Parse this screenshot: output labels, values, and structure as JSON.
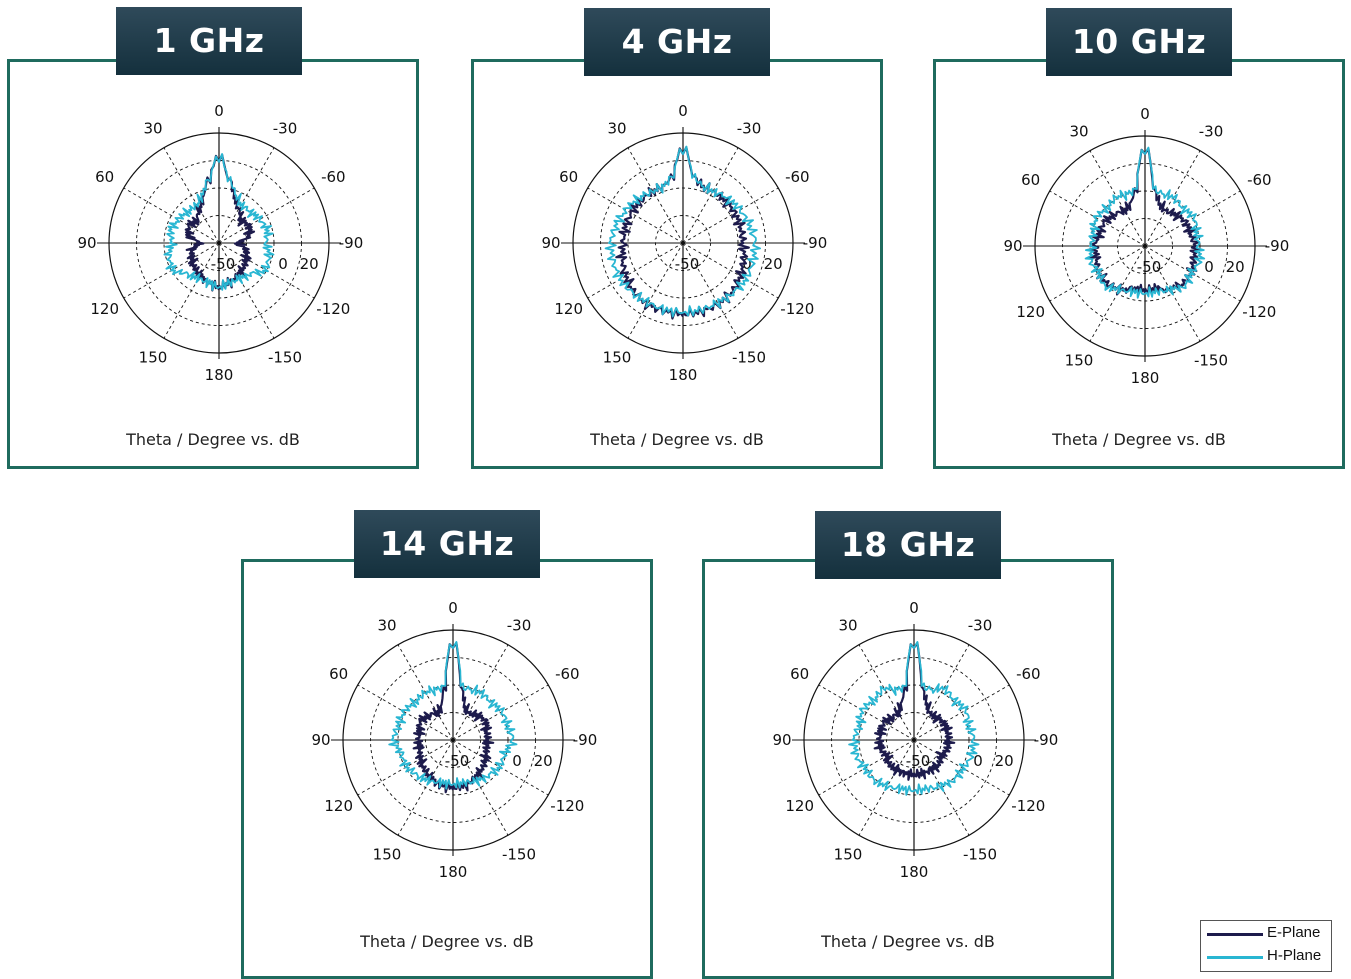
{
  "colors": {
    "e_plane": "#1d1b4c",
    "h_plane": "#29b6d2",
    "border": "#1f6b5e"
  },
  "legend": {
    "items": [
      {
        "label": "E-Plane",
        "color": "#1d1b4c"
      },
      {
        "label": "H-Plane",
        "color": "#29b6d2"
      }
    ]
  },
  "chart_data": [
    {
      "type": "polar",
      "title": "1 GHz",
      "xlabel": "Theta / Degree vs. dB",
      "r_range": [
        -50,
        20
      ],
      "r_tick_labels": [
        "-50",
        "0",
        "20"
      ],
      "angle_tick_labels": [
        "0",
        "-30",
        "-60",
        "-90",
        "-120",
        "-150",
        "180",
        "150",
        "120",
        "90",
        "60",
        "30"
      ],
      "grid": true,
      "series": [
        {
          "name": "E-Plane",
          "theta": [
            0,
            10,
            20,
            30,
            45,
            60,
            75,
            90,
            105,
            120,
            135,
            150,
            165,
            180
          ],
          "values": [
            5,
            -10,
            -20,
            -25,
            -30,
            -28,
            -30,
            -38,
            -32,
            -30,
            -28,
            -26,
            -24,
            -22
          ]
        },
        {
          "name": "H-Plane",
          "theta": [
            0,
            10,
            20,
            30,
            45,
            60,
            75,
            90,
            105,
            120,
            135,
            150,
            165,
            180
          ],
          "values": [
            5,
            -10,
            -18,
            -22,
            -22,
            -20,
            -18,
            -20,
            -17,
            -16,
            -22,
            -24,
            -24,
            -22
          ]
        }
      ]
    },
    {
      "type": "polar",
      "title": "4 GHz",
      "xlabel": "Theta / Degree vs. dB",
      "r_range": [
        -50,
        20
      ],
      "r_tick_labels": [
        "-50",
        "0",
        "20"
      ],
      "angle_tick_labels": [
        "0",
        "-30",
        "-60",
        "-90",
        "-120",
        "-150",
        "180",
        "150",
        "120",
        "90",
        "60",
        "30"
      ],
      "grid": true,
      "series": [
        {
          "name": "E-Plane",
          "theta": [
            0,
            10,
            20,
            30,
            45,
            60,
            75,
            90,
            105,
            120,
            135,
            150,
            165,
            180
          ],
          "values": [
            10,
            -8,
            -12,
            -12,
            -12,
            -12,
            -12,
            -12,
            -10,
            -8,
            -6,
            -5,
            -5,
            -5
          ]
        },
        {
          "name": "H-Plane",
          "theta": [
            0,
            10,
            20,
            30,
            45,
            60,
            75,
            90,
            105,
            120,
            135,
            150,
            165,
            180
          ],
          "values": [
            10,
            -8,
            -12,
            -12,
            -10,
            -8,
            -6,
            -4,
            -4,
            -4,
            -5,
            -6,
            -6,
            -6
          ]
        }
      ]
    },
    {
      "type": "polar",
      "title": "10 GHz",
      "xlabel": "Theta / Degree vs. dB",
      "r_range": [
        -50,
        20
      ],
      "r_tick_labels": [
        "-50",
        "0",
        "20"
      ],
      "angle_tick_labels": [
        "0",
        "-30",
        "-60",
        "-90",
        "-120",
        "-150",
        "180",
        "150",
        "120",
        "90",
        "60",
        "30"
      ],
      "grid": true,
      "series": [
        {
          "name": "E-Plane",
          "theta": [
            0,
            10,
            20,
            30,
            45,
            60,
            75,
            90,
            105,
            120,
            135,
            150,
            165,
            180
          ],
          "values": [
            12,
            -15,
            -22,
            -24,
            -22,
            -20,
            -20,
            -18,
            -18,
            -16,
            -16,
            -18,
            -22,
            -22
          ]
        },
        {
          "name": "H-Plane",
          "theta": [
            0,
            10,
            20,
            30,
            45,
            60,
            75,
            90,
            105,
            120,
            135,
            150,
            165,
            180
          ],
          "values": [
            12,
            -14,
            -15,
            -14,
            -16,
            -14,
            -16,
            -16,
            -14,
            -16,
            -14,
            -18,
            -20,
            -20
          ]
        }
      ]
    },
    {
      "type": "polar",
      "title": "14 GHz",
      "xlabel": "Theta / Degree vs. dB",
      "r_range": [
        -50,
        20
      ],
      "r_tick_labels": [
        "-50",
        "0",
        "20"
      ],
      "angle_tick_labels": [
        "0",
        "-30",
        "-60",
        "-90",
        "-120",
        "-150",
        "180",
        "150",
        "120",
        "90",
        "60",
        "30"
      ],
      "grid": true,
      "series": [
        {
          "name": "E-Plane",
          "theta": [
            0,
            10,
            20,
            30,
            45,
            60,
            75,
            90,
            105,
            120,
            135,
            150,
            165,
            180
          ],
          "values": [
            12,
            -18,
            -28,
            -30,
            -28,
            -26,
            -28,
            -28,
            -28,
            -26,
            -24,
            -22,
            -20,
            -20
          ]
        },
        {
          "name": "H-Plane",
          "theta": [
            0,
            10,
            20,
            30,
            45,
            60,
            75,
            90,
            105,
            120,
            135,
            150,
            165,
            180
          ],
          "values": [
            12,
            -16,
            -16,
            -15,
            -16,
            -14,
            -14,
            -12,
            -16,
            -16,
            -18,
            -20,
            -22,
            -22
          ]
        }
      ]
    },
    {
      "type": "polar",
      "title": "18 GHz",
      "xlabel": "Theta / Degree vs. dB",
      "r_range": [
        -50,
        20
      ],
      "r_tick_labels": [
        "-50",
        "0",
        "20"
      ],
      "angle_tick_labels": [
        "0",
        "-30",
        "-60",
        "-90",
        "-120",
        "-150",
        "180",
        "150",
        "120",
        "90",
        "60",
        "30"
      ],
      "grid": true,
      "series": [
        {
          "name": "E-Plane",
          "theta": [
            0,
            10,
            20,
            30,
            45,
            60,
            75,
            90,
            105,
            120,
            135,
            150,
            165,
            180
          ],
          "values": [
            12,
            -18,
            -26,
            -30,
            -30,
            -28,
            -28,
            -28,
            -28,
            -30,
            -28,
            -28,
            -28,
            -28
          ]
        },
        {
          "name": "H-Plane",
          "theta": [
            0,
            10,
            20,
            30,
            45,
            60,
            75,
            90,
            105,
            120,
            135,
            150,
            165,
            180
          ],
          "values": [
            12,
            -16,
            -16,
            -12,
            -14,
            -12,
            -14,
            -12,
            -12,
            -14,
            -14,
            -16,
            -18,
            -18
          ]
        }
      ]
    }
  ]
}
